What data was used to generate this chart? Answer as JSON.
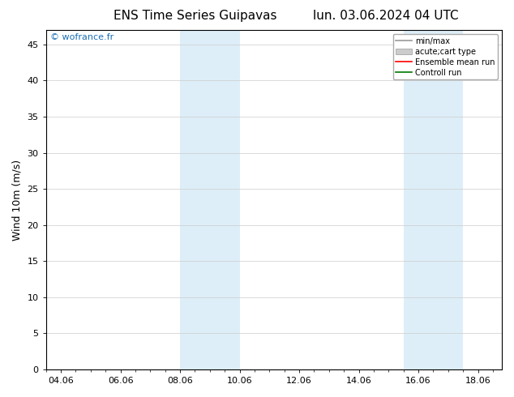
{
  "title_left": "ENS Time Series Guipavas",
  "title_right": "lun. 03.06.2024 04 UTC",
  "ylabel": "Wind 10m (m/s)",
  "watermark": "© wofrance.fr",
  "xlim_start": 3.5,
  "xlim_end": 18.8,
  "ylim_bottom": 0,
  "ylim_top": 47,
  "yticks": [
    0,
    5,
    10,
    15,
    20,
    25,
    30,
    35,
    40,
    45
  ],
  "xtick_labels": [
    "04.06",
    "06.06",
    "08.06",
    "10.06",
    "12.06",
    "14.06",
    "16.06",
    "18.06"
  ],
  "xtick_positions": [
    4,
    6,
    8,
    10,
    12,
    14,
    16,
    18
  ],
  "shaded_bands": [
    {
      "x_start": 8.0,
      "x_end": 10.0
    },
    {
      "x_start": 15.5,
      "x_end": 17.5
    }
  ],
  "band_color": "#ddeef8",
  "background_color": "#ffffff",
  "legend_entries": [
    {
      "label": "min/max",
      "color": "#999999",
      "linestyle": "-",
      "linewidth": 1.2,
      "type": "line"
    },
    {
      "label": "acute;cart type",
      "color": "#cccccc",
      "linestyle": "-",
      "linewidth": 5,
      "type": "patch"
    },
    {
      "label": "Ensemble mean run",
      "color": "#ff0000",
      "linestyle": "-",
      "linewidth": 1.2,
      "type": "line"
    },
    {
      "label": "Controll run",
      "color": "#007700",
      "linestyle": "-",
      "linewidth": 1.2,
      "type": "line"
    }
  ],
  "watermark_color": "#1a6fb5",
  "title_fontsize": 11,
  "ylabel_fontsize": 9,
  "tick_fontsize": 8,
  "legend_fontsize": 7,
  "grid_color": "#cccccc",
  "spine_color": "#000000"
}
